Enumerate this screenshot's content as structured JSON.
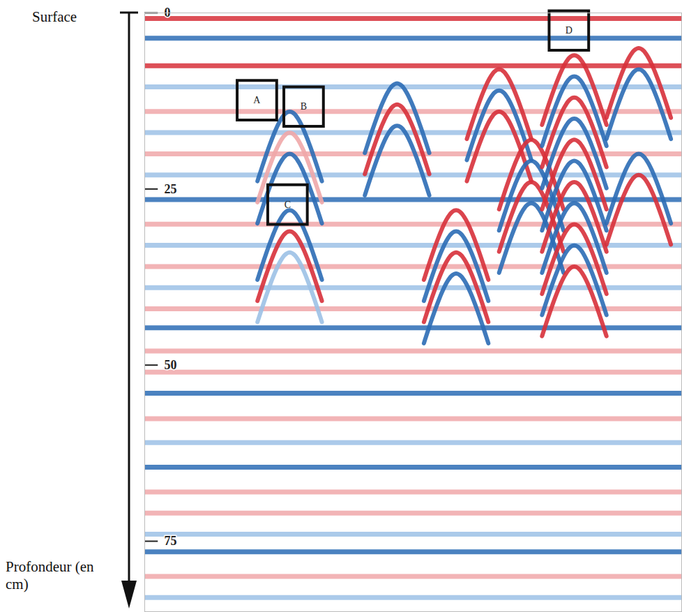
{
  "chart_data": {
    "type": "radargram",
    "top_label": "Surface",
    "y_label": "Profondeur (en cm)",
    "ylim": [
      0,
      85
    ],
    "yticks": [
      0,
      25,
      50,
      75
    ],
    "xlim": [
      0,
      100
    ],
    "tick_labels": "y",
    "reflectors": [
      {
        "depth": 0.8,
        "color": "#d7303a"
      },
      {
        "depth": 3.6,
        "color": "#2b6cb5"
      },
      {
        "depth": 7.5,
        "color": "#d7303a"
      },
      {
        "depth": 10.5,
        "color": "#9cc1e6"
      },
      {
        "depth": 14,
        "color": "#f0a7a9"
      },
      {
        "depth": 17,
        "color": "#9cc1e6"
      },
      {
        "depth": 20,
        "color": "#f0a7a9"
      },
      {
        "depth": 23,
        "color": "#9cc1e6"
      },
      {
        "depth": 26.5,
        "color": "#2b6cb5"
      },
      {
        "depth": 30,
        "color": "#f0a7a9"
      },
      {
        "depth": 33,
        "color": "#9cc1e6"
      },
      {
        "depth": 36,
        "color": "#f0a7a9"
      },
      {
        "depth": 39,
        "color": "#9cc1e6"
      },
      {
        "depth": 42,
        "color": "#f0a7a9"
      },
      {
        "depth": 44.7,
        "color": "#2b6cb5"
      },
      {
        "depth": 48,
        "color": "#f0a7a9"
      },
      {
        "depth": 51,
        "color": "#f0a7a9"
      },
      {
        "depth": 54,
        "color": "#2b6cb5"
      },
      {
        "depth": 57.6,
        "color": "#f0a7a9"
      },
      {
        "depth": 61,
        "color": "#9cc1e6"
      },
      {
        "depth": 64.5,
        "color": "#2b6cb5"
      },
      {
        "depth": 68,
        "color": "#f0a7a9"
      },
      {
        "depth": 71,
        "color": "#f0a7a9"
      },
      {
        "depth": 74,
        "color": "#9cc1e6"
      },
      {
        "depth": 76.5,
        "color": "#2b6cb5"
      },
      {
        "depth": 80,
        "color": "#f0a7a9"
      },
      {
        "depth": 83,
        "color": "#9cc1e6"
      }
    ],
    "hyperbolas": [
      {
        "x": 27,
        "depth": 14,
        "color": "#2b6cb5"
      },
      {
        "x": 27,
        "depth": 17,
        "color": "#f0a7a9"
      },
      {
        "x": 27,
        "depth": 20,
        "color": "#2b6cb5"
      },
      {
        "x": 27,
        "depth": 28,
        "color": "#2b6cb5"
      },
      {
        "x": 27,
        "depth": 31,
        "color": "#d7303a"
      },
      {
        "x": 27,
        "depth": 34,
        "color": "#9cc1e6"
      },
      {
        "x": 47,
        "depth": 10,
        "color": "#2b6cb5"
      },
      {
        "x": 47,
        "depth": 13,
        "color": "#d7303a"
      },
      {
        "x": 47,
        "depth": 16,
        "color": "#2b6cb5"
      },
      {
        "x": 58,
        "depth": 28,
        "color": "#d7303a"
      },
      {
        "x": 58,
        "depth": 31,
        "color": "#2b6cb5"
      },
      {
        "x": 58,
        "depth": 34,
        "color": "#d7303a"
      },
      {
        "x": 58,
        "depth": 37,
        "color": "#2b6cb5"
      },
      {
        "x": 66,
        "depth": 8,
        "color": "#d7303a"
      },
      {
        "x": 66,
        "depth": 11,
        "color": "#2b6cb5"
      },
      {
        "x": 66,
        "depth": 14,
        "color": "#d7303a"
      },
      {
        "x": 72,
        "depth": 18,
        "color": "#d7303a"
      },
      {
        "x": 72,
        "depth": 21,
        "color": "#2b6cb5"
      },
      {
        "x": 72,
        "depth": 24,
        "color": "#d7303a"
      },
      {
        "x": 72,
        "depth": 27,
        "color": "#2b6cb5"
      },
      {
        "x": 80,
        "depth": 6,
        "color": "#d7303a"
      },
      {
        "x": 80,
        "depth": 9,
        "color": "#2b6cb5"
      },
      {
        "x": 80,
        "depth": 12,
        "color": "#d7303a"
      },
      {
        "x": 80,
        "depth": 15,
        "color": "#2b6cb5"
      },
      {
        "x": 80,
        "depth": 18,
        "color": "#d7303a"
      },
      {
        "x": 80,
        "depth": 21,
        "color": "#2b6cb5"
      },
      {
        "x": 80,
        "depth": 24,
        "color": "#d7303a"
      },
      {
        "x": 80,
        "depth": 27,
        "color": "#2b6cb5"
      },
      {
        "x": 80,
        "depth": 30,
        "color": "#d7303a"
      },
      {
        "x": 80,
        "depth": 33,
        "color": "#2b6cb5"
      },
      {
        "x": 80,
        "depth": 36,
        "color": "#d7303a"
      },
      {
        "x": 92,
        "depth": 5,
        "color": "#d7303a"
      },
      {
        "x": 92,
        "depth": 8,
        "color": "#2b6cb5"
      },
      {
        "x": 92,
        "depth": 20,
        "color": "#2b6cb5"
      },
      {
        "x": 92,
        "depth": 23,
        "color": "#d7303a"
      }
    ],
    "boxes": [
      {
        "label": "A",
        "x": 20.9,
        "depth": 12.4
      },
      {
        "label": "B",
        "x": 29.6,
        "depth": 13.3
      },
      {
        "label": "C",
        "x": 26.6,
        "depth": 27.2
      },
      {
        "label": "D",
        "x": 79,
        "depth": 2.5
      }
    ]
  }
}
